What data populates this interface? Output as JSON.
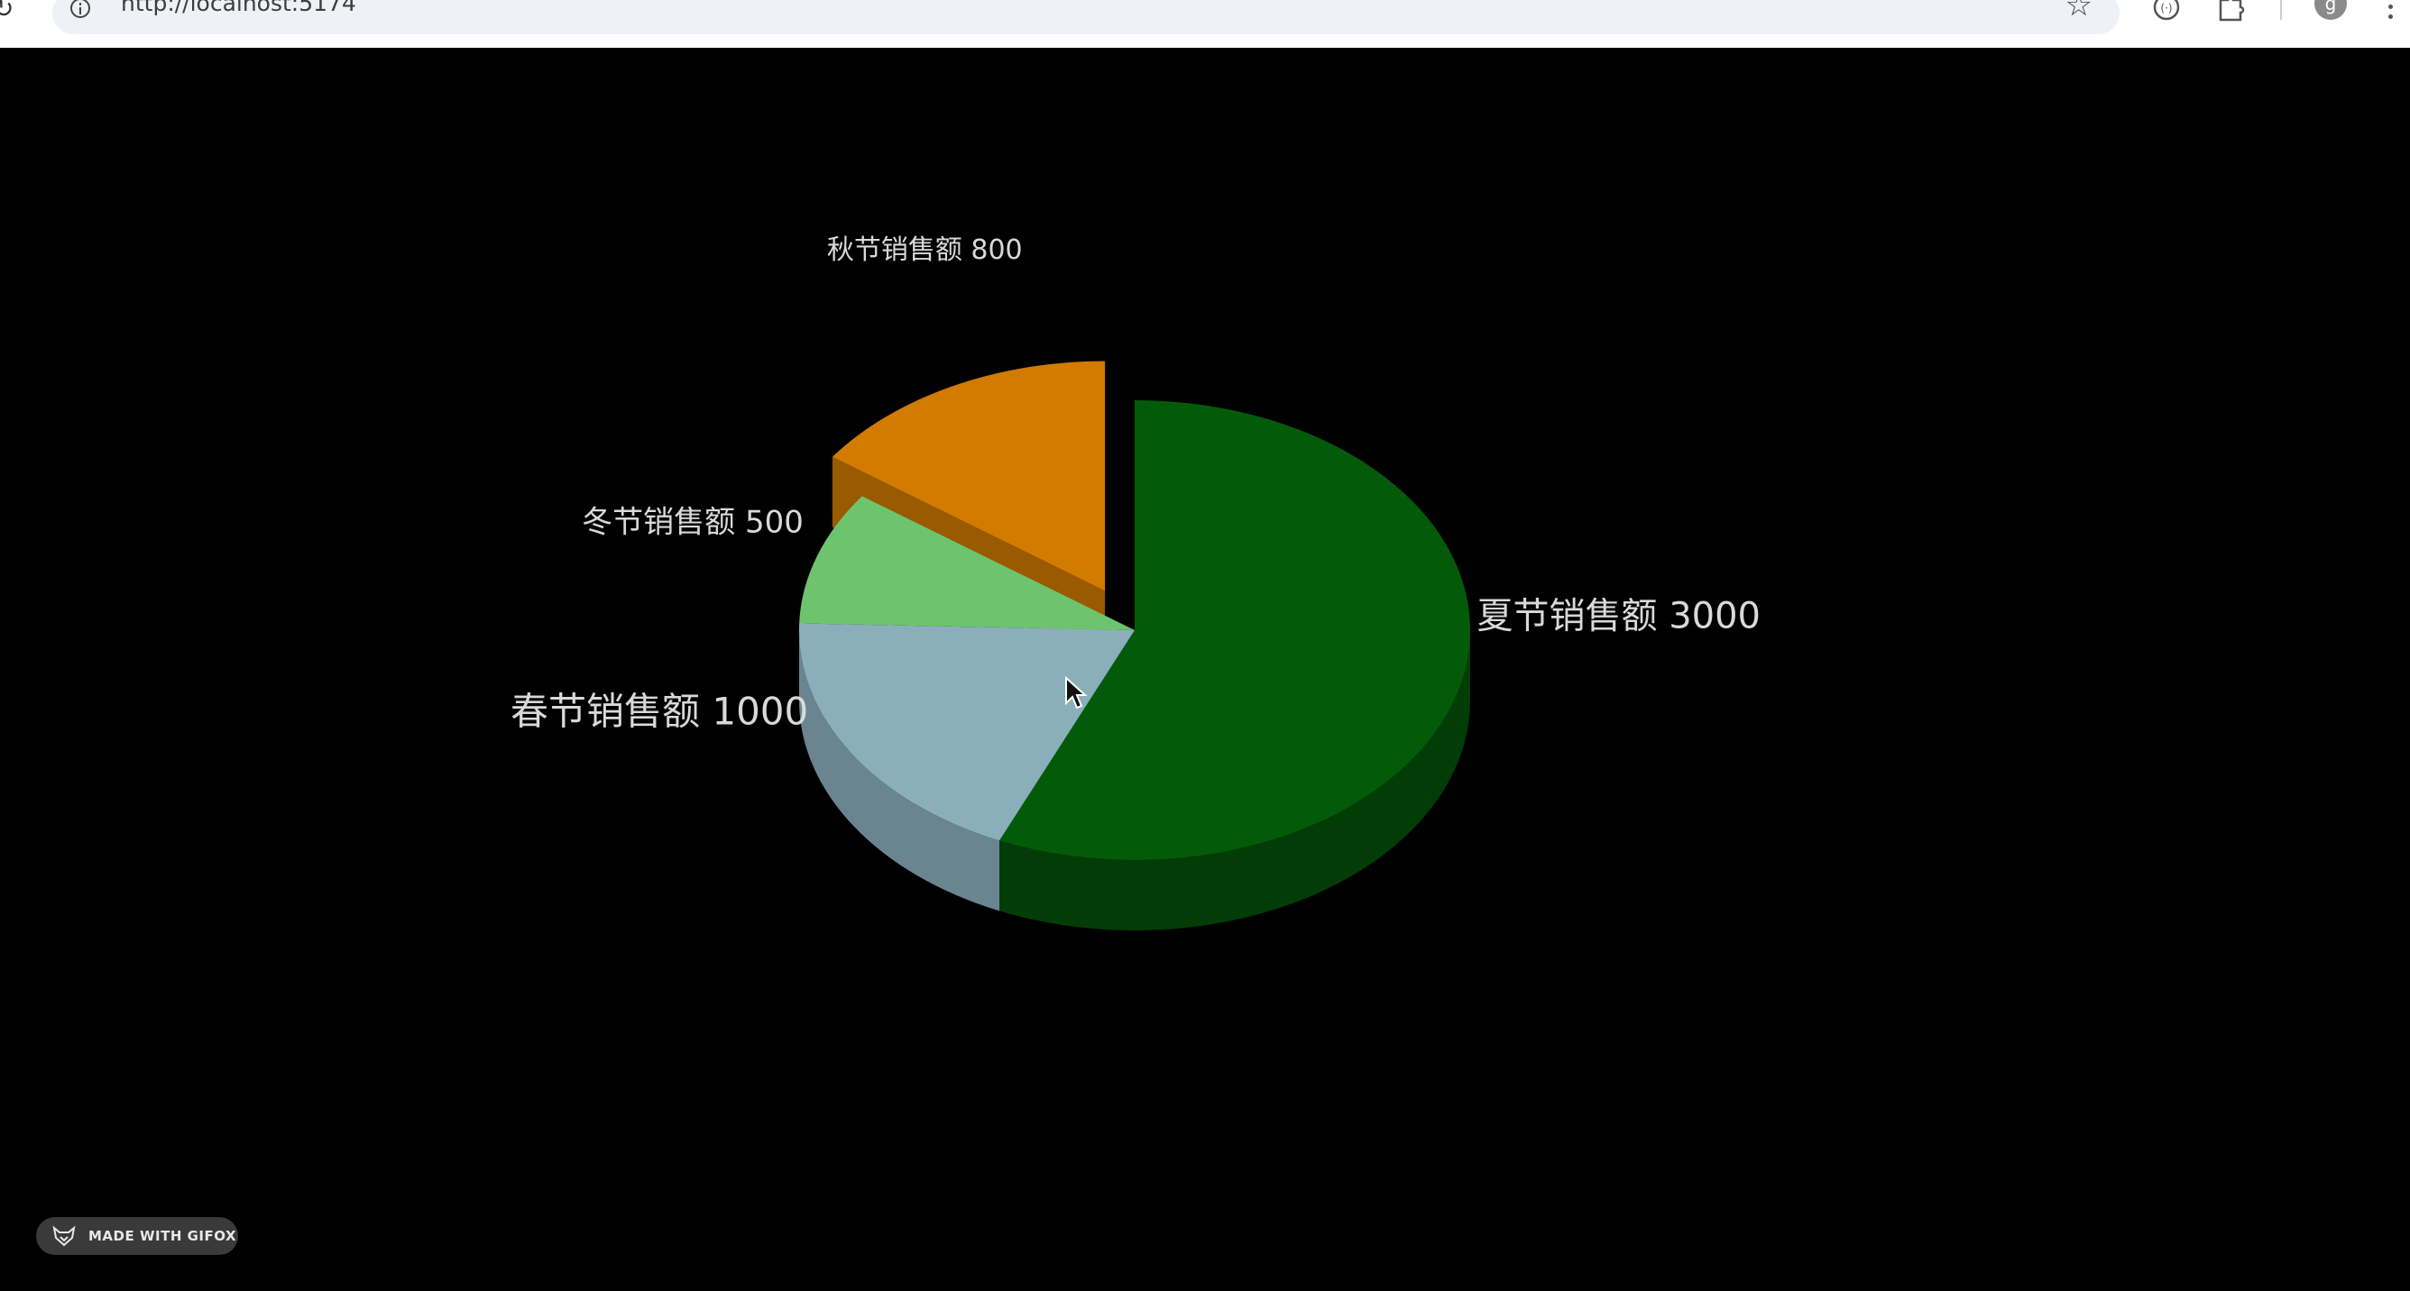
{
  "browser": {
    "url": "http://localhost:5174",
    "profile_initial": "g"
  },
  "chart_data": {
    "type": "pie",
    "title": "",
    "slices": [
      {
        "label": "春节销售额",
        "value": 1000,
        "color": "#8aafbb",
        "side_color": "#6a8590"
      },
      {
        "label": "夏节销售额",
        "value": 3000,
        "color": "#035b0a",
        "side_color": "#023d07"
      },
      {
        "label": "秋节销售额",
        "value": 800,
        "color": "#d17b00",
        "side_color": "#9a5a00"
      },
      {
        "label": "冬节销售额",
        "value": 500,
        "color": "#6ec46e",
        "side_color": "#4f8f4f"
      }
    ],
    "exploded": [
      "秋节销售额"
    ],
    "style": "3d",
    "legend": "none",
    "background": "#000000"
  },
  "badge": {
    "text": "MADE WITH GIFOX"
  }
}
